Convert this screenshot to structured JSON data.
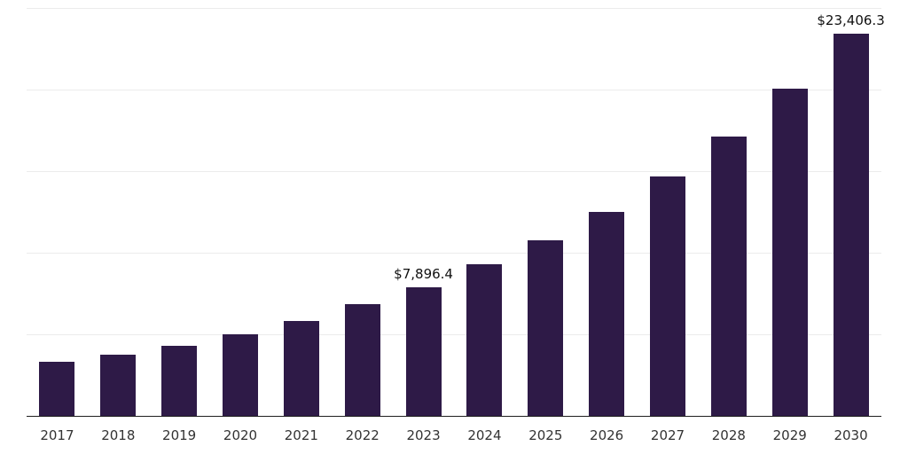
{
  "chart_data": {
    "type": "bar",
    "title": "",
    "xlabel": "",
    "ylabel": "",
    "categories": [
      "2017",
      "2018",
      "2019",
      "2020",
      "2021",
      "2022",
      "2023",
      "2024",
      "2025",
      "2026",
      "2027",
      "2028",
      "2029",
      "2030"
    ],
    "values": [
      3310,
      3730,
      4320,
      5010,
      5820,
      6830,
      7896.4,
      9280,
      10780,
      12490,
      14680,
      17130,
      20060,
      23406.3
    ],
    "data_labels": [
      null,
      null,
      null,
      null,
      null,
      null,
      "$7,896.4",
      null,
      null,
      null,
      null,
      null,
      null,
      "$23,406.3"
    ],
    "ylim": [
      0,
      25000
    ],
    "grid": true,
    "grid_step": 5000,
    "legend": "none",
    "bar_color": "#2e1a47",
    "axis_line_color": "#1f1f1f",
    "gridline_color": "#ececec",
    "label_color": "#333333",
    "value_label_color": "#111111"
  }
}
